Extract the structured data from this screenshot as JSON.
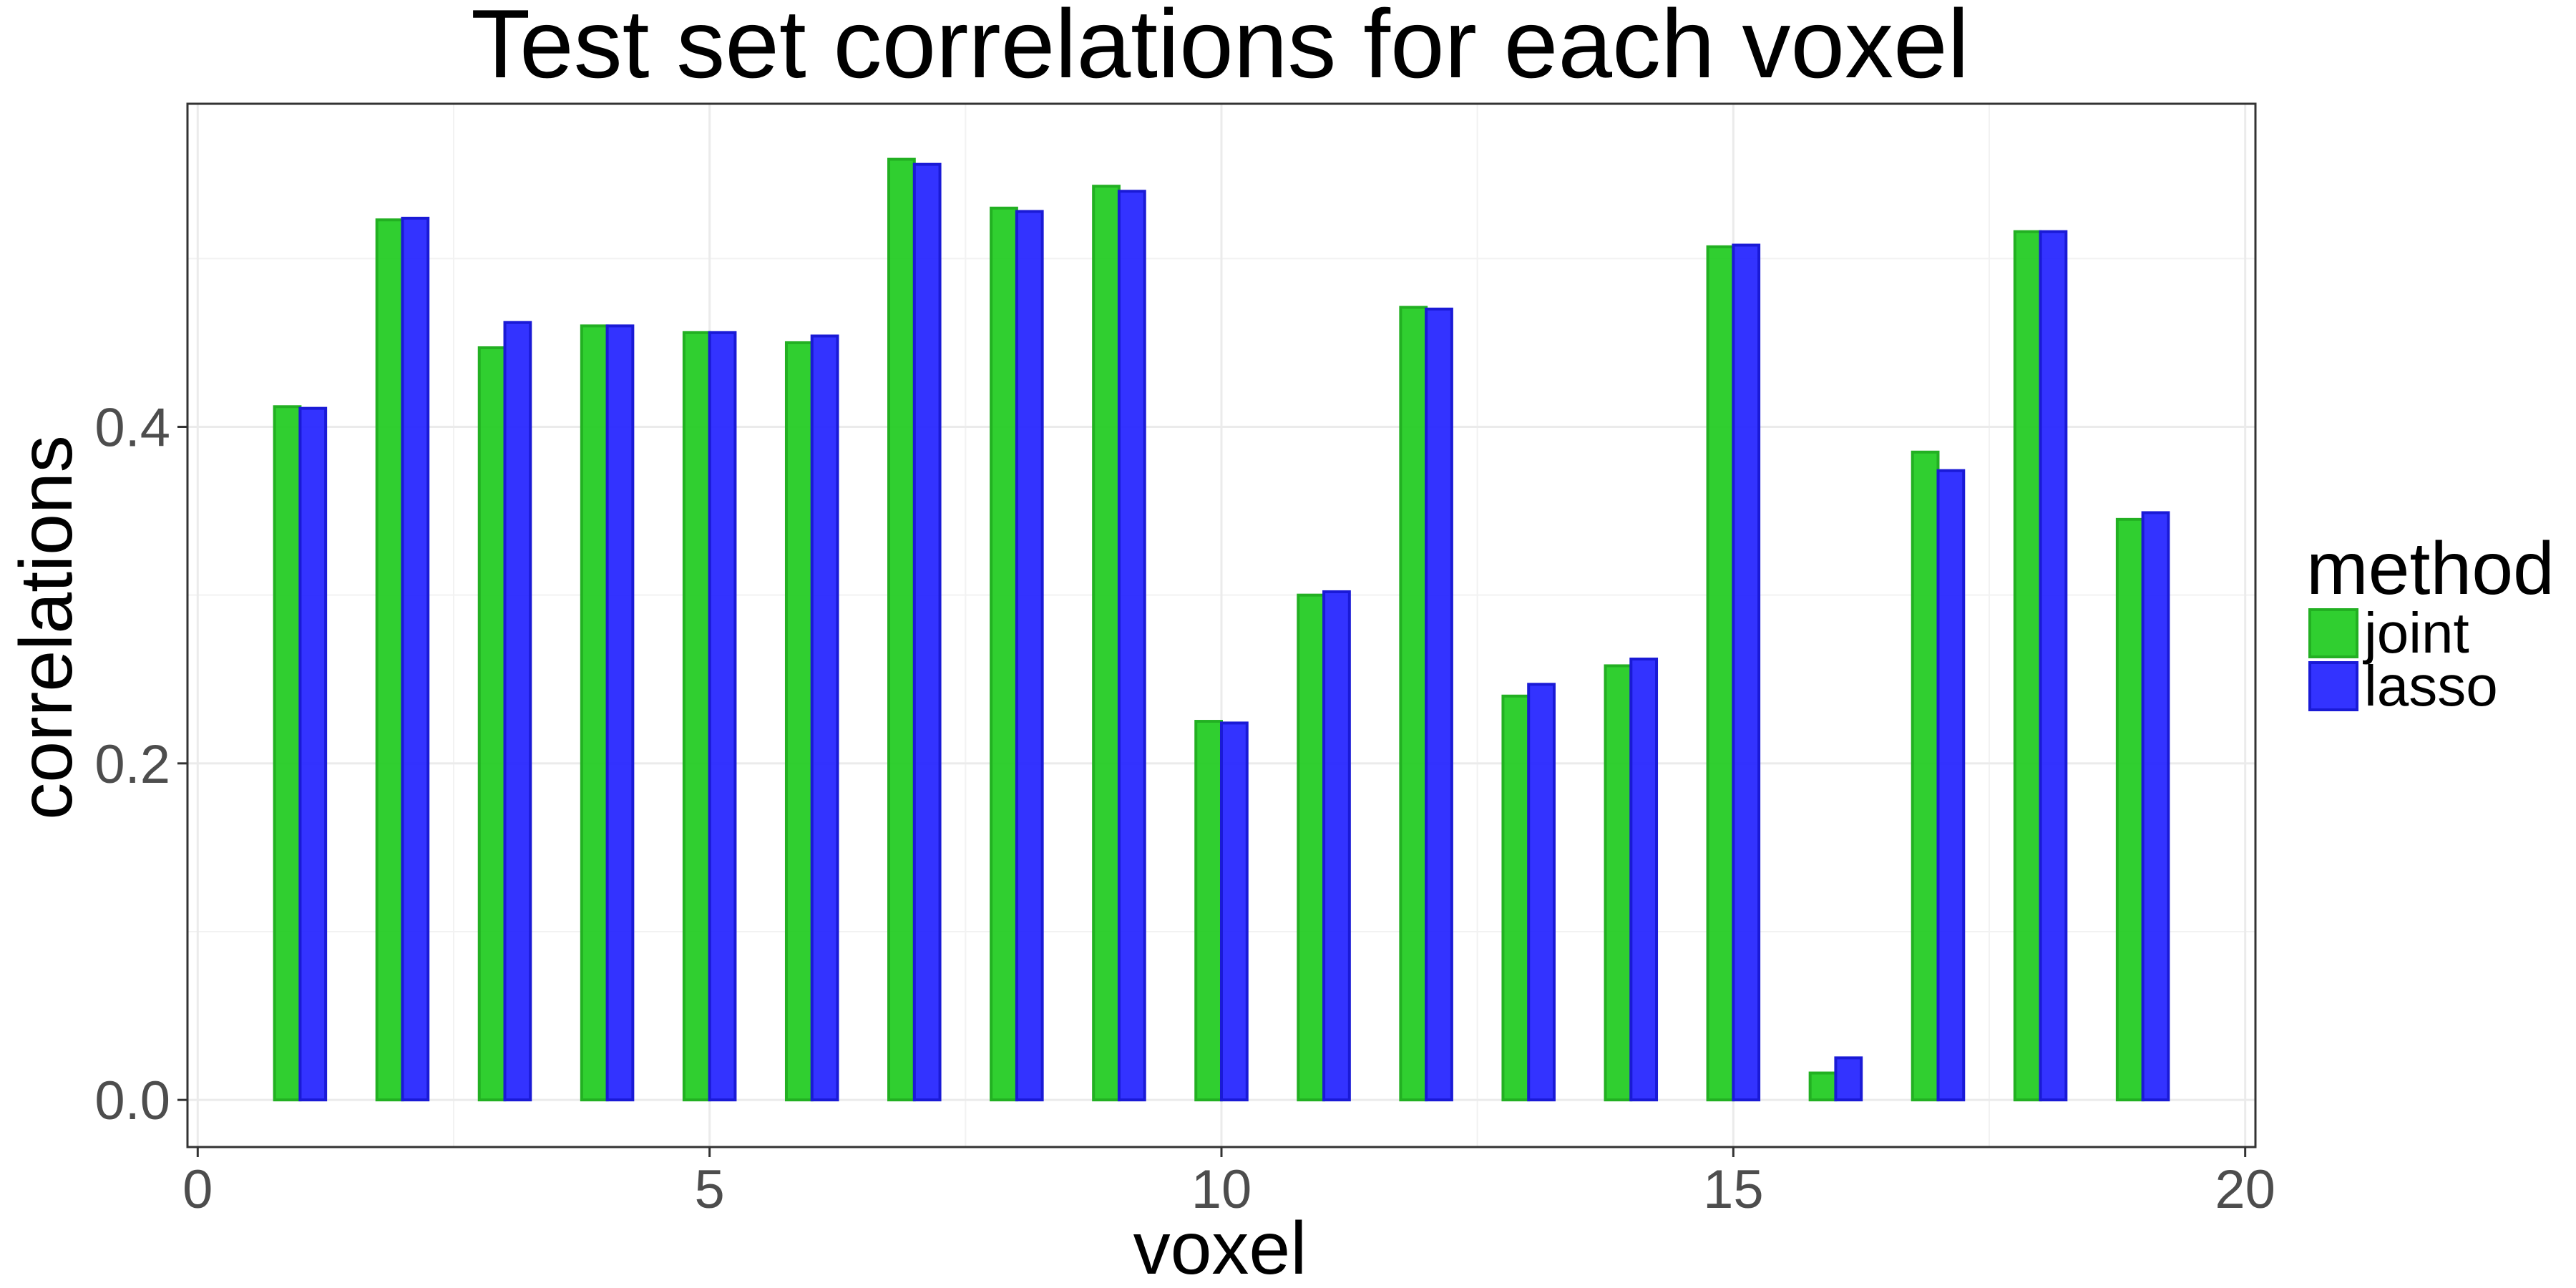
{
  "chart_data": {
    "type": "bar",
    "title": "Test set correlations for each voxel",
    "xlabel": "voxel",
    "ylabel": "correlations",
    "xlim": [
      -0.1,
      20.1
    ],
    "ylim": [
      -0.028,
      0.592
    ],
    "x_ticks": [
      0,
      5,
      10,
      15,
      20
    ],
    "y_ticks": [
      0.0,
      0.2,
      0.4
    ],
    "x_tick_labels": [
      "0",
      "5",
      "10",
      "15",
      "20"
    ],
    "y_tick_labels": [
      "0.0",
      "0.2",
      "0.4"
    ],
    "grid": true,
    "legend": {
      "title": "method",
      "position": "right",
      "entries": [
        "joint",
        "lasso"
      ]
    },
    "categories": [
      1,
      2,
      3,
      4,
      5,
      6,
      7,
      8,
      9,
      10,
      11,
      12,
      13,
      14,
      15,
      16,
      17,
      18,
      19
    ],
    "series": [
      {
        "name": "joint",
        "color": "#1ecb1e",
        "stroke": "#22b022",
        "values": [
          0.412,
          0.523,
          0.447,
          0.46,
          0.456,
          0.45,
          0.559,
          0.53,
          0.543,
          0.225,
          0.3,
          0.471,
          0.24,
          0.258,
          0.507,
          0.016,
          0.385,
          0.516,
          0.345
        ]
      },
      {
        "name": "lasso",
        "color": "#2222ff",
        "stroke": "#1a1ad6",
        "values": [
          0.411,
          0.524,
          0.462,
          0.46,
          0.456,
          0.454,
          0.556,
          0.528,
          0.54,
          0.224,
          0.302,
          0.47,
          0.247,
          0.262,
          0.508,
          0.025,
          0.374,
          0.516,
          0.349
        ]
      }
    ]
  }
}
